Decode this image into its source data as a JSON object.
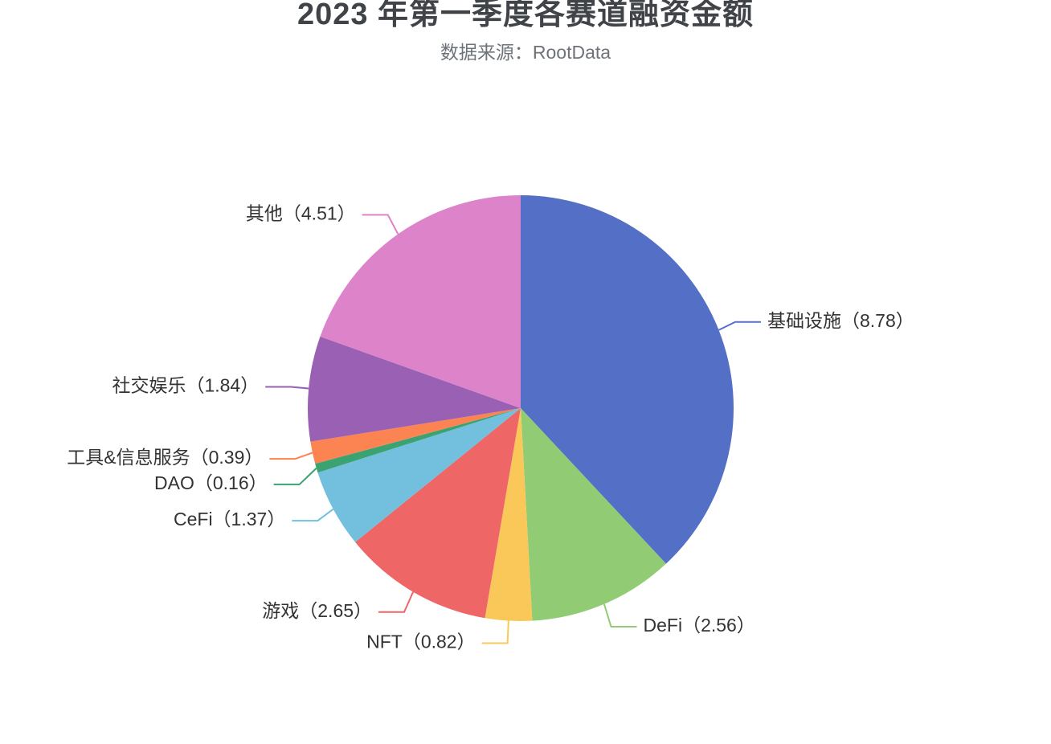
{
  "header": {
    "title": "2023 年第一季度各赛道融资金额",
    "subtitle": "数据来源：RootData"
  },
  "chart_data": {
    "type": "pie",
    "title": "2023 年第一季度各赛道融资金额",
    "subtitle": "数据来源：RootData",
    "unit_note": "values as shown on labels",
    "categories": [
      "基础设施",
      "DeFi",
      "NFT",
      "游戏",
      "CeFi",
      "DAO",
      "工具&信息服务",
      "社交娱乐",
      "其他"
    ],
    "values": [
      8.78,
      2.56,
      0.82,
      2.65,
      1.37,
      0.16,
      0.39,
      1.84,
      4.51
    ],
    "labels": [
      "基础设施（8.78）",
      "DeFi（2.56）",
      "NFT（0.82）",
      "游戏（2.65）",
      "CeFi（1.37）",
      "DAO（0.16）",
      "工具&信息服务（0.39）",
      "社交娱乐（1.84）",
      "其他（4.51）"
    ],
    "colors": [
      "#5470c6",
      "#91cc75",
      "#fac858",
      "#ee6666",
      "#73c0de",
      "#3ba272",
      "#fc8452",
      "#9a60b4",
      "#dd83ca"
    ],
    "start_angle": "12 o'clock, clockwise",
    "legend": "none",
    "label_text_color": "#333333"
  }
}
